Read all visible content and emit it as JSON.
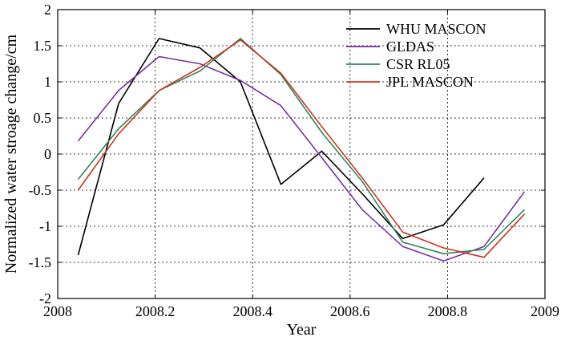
{
  "chart_data": {
    "type": "line",
    "title": "",
    "xlabel": "Year",
    "ylabel": "Normalized water stroage change/cm",
    "xlim": [
      2008,
      2009
    ],
    "ylim": [
      -2,
      2
    ],
    "xticks": [
      2008,
      2008.2,
      2008.4,
      2008.6,
      2008.8,
      2009
    ],
    "xtick_labels": [
      "2008",
      "2008.2",
      "2008.4",
      "2008.6",
      "2008.8",
      "2009"
    ],
    "yticks": [
      -2,
      -1.5,
      -1,
      -0.5,
      0,
      0.5,
      1,
      1.5,
      2
    ],
    "ytick_labels": [
      "-2",
      "-1.5",
      "-1",
      "-0.5",
      "0",
      "0.5",
      "1",
      "1.5",
      "2"
    ],
    "grid": true,
    "legend_position": "top-right",
    "series": [
      {
        "name": "WHU MASCON",
        "color": "#000000",
        "x": [
          2008.042,
          2008.125,
          2008.208,
          2008.292,
          2008.375,
          2008.458,
          2008.542,
          2008.625,
          2008.708,
          2008.792,
          2008.875
        ],
        "y": [
          -1.4,
          0.7,
          1.6,
          1.47,
          1.0,
          -0.42,
          0.04,
          -0.55,
          -1.17,
          -0.98,
          -0.33
        ]
      },
      {
        "name": "GLDAS",
        "color": "#7b2fa0",
        "x": [
          2008.042,
          2008.125,
          2008.208,
          2008.292,
          2008.375,
          2008.458,
          2008.542,
          2008.625,
          2008.708,
          2008.792,
          2008.875,
          2008.958
        ],
        "y": [
          0.18,
          0.88,
          1.35,
          1.25,
          1.02,
          0.67,
          -0.05,
          -0.77,
          -1.28,
          -1.48,
          -1.28,
          -0.52
        ]
      },
      {
        "name": "CSR RL05",
        "color": "#2a8a5e",
        "x": [
          2008.042,
          2008.125,
          2008.208,
          2008.292,
          2008.375,
          2008.458,
          2008.542,
          2008.625,
          2008.708,
          2008.792,
          2008.875,
          2008.958
        ],
        "y": [
          -0.35,
          0.35,
          0.88,
          1.15,
          1.6,
          1.1,
          0.3,
          -0.38,
          -1.22,
          -1.38,
          -1.32,
          -0.77
        ]
      },
      {
        "name": "JPL MASCON",
        "color": "#d4301c",
        "x": [
          2008.042,
          2008.125,
          2008.208,
          2008.292,
          2008.375,
          2008.458,
          2008.542,
          2008.625,
          2008.708,
          2008.792,
          2008.875,
          2008.958
        ],
        "y": [
          -0.5,
          0.28,
          0.88,
          1.2,
          1.58,
          1.12,
          0.38,
          -0.33,
          -1.08,
          -1.3,
          -1.43,
          -0.83
        ]
      }
    ]
  }
}
